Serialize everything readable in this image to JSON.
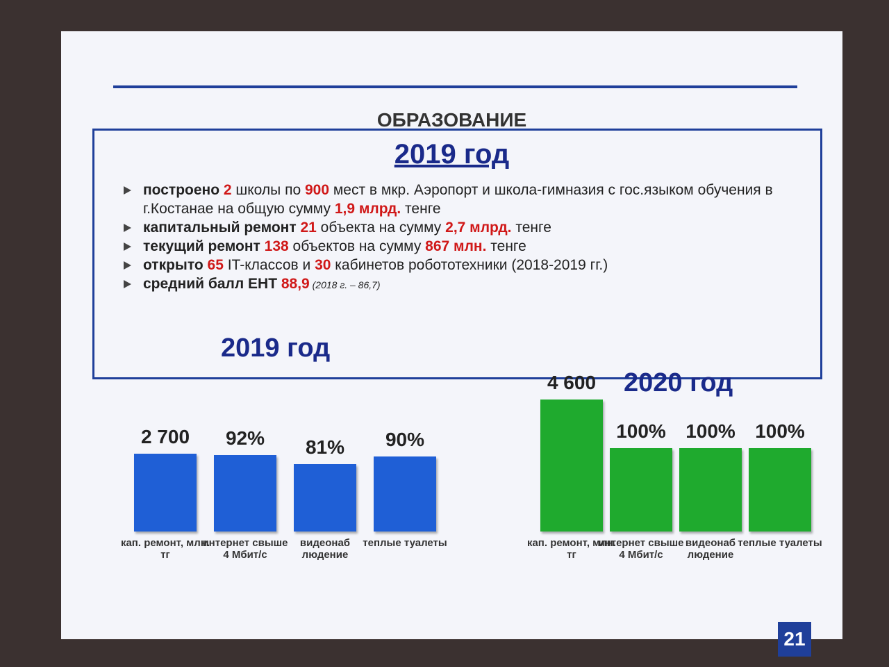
{
  "title": "ОБРАЗОВАНИЕ",
  "subtitle": "2019 год",
  "bullets": [
    [
      {
        "text": "построено ",
        "style": "bold"
      },
      {
        "text": "2",
        "style": "red"
      },
      {
        "text": " школы по "
      },
      {
        "text": "900",
        "style": "red"
      },
      {
        "text": " мест в мкр. Аэропорт и школа-гимназия с гос.языком обучения в г.Костанае на общую сумму "
      },
      {
        "text": "1,9 млрд.",
        "style": "red"
      },
      {
        "text": " тенге"
      }
    ],
    [
      {
        "text": "капитальный ремонт ",
        "style": "bold"
      },
      {
        "text": "21",
        "style": "red"
      },
      {
        "text": " объекта на сумму "
      },
      {
        "text": "2,7 млрд.",
        "style": "red"
      },
      {
        "text": " тенге"
      }
    ],
    [
      {
        "text": "текущий ремонт ",
        "style": "bold"
      },
      {
        "text": "138",
        "style": "red"
      },
      {
        "text": " объектов на сумму "
      },
      {
        "text": "867 млн.",
        "style": "red"
      },
      {
        "text": " тенге"
      }
    ],
    [
      {
        "text": "открыто ",
        "style": "bold"
      },
      {
        "text": "65",
        "style": "red"
      },
      {
        "text": " IT-классов и "
      },
      {
        "text": "30",
        "style": "red"
      },
      {
        "text": " кабинетов робототехники (2018-2019 гг.)"
      }
    ],
    [
      {
        "text": "средний балл ЕНТ ",
        "style": "bold"
      },
      {
        "text": "88,9",
        "style": "red"
      },
      {
        "text": " (2018 г. – 86,7)",
        "style": "small"
      }
    ]
  ],
  "chart_data": [
    {
      "type": "bar",
      "title": "2019 год",
      "color": "#1f5fd6",
      "categories": [
        "кап. ремонт, млн. тг",
        "интернет свыше 4 Мбит/с",
        "видеонаб людение",
        "теплые туалеты"
      ],
      "values": [
        2700,
        92,
        81,
        90
      ],
      "value_labels": [
        "2 700",
        "92%",
        "81%",
        "90%"
      ],
      "ylim": [
        0,
        100
      ]
    },
    {
      "type": "bar",
      "title": "2020 год",
      "color": "#1faa2e",
      "categories": [
        "кап. ремонт, млн. тг",
        "интернет свыше 4 Мбит/с",
        "видеонаб людение",
        "теплые туалеты"
      ],
      "values": [
        4600,
        100,
        100,
        100
      ],
      "value_labels": [
        "4 600",
        "100%",
        "100%",
        "100%"
      ],
      "ylim": [
        0,
        100
      ]
    }
  ],
  "page_number": "21"
}
